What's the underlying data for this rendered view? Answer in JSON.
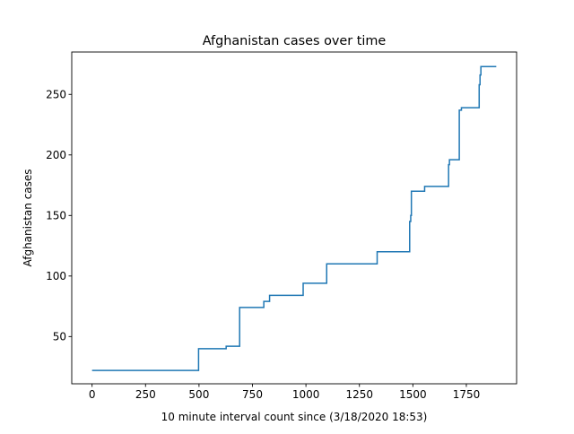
{
  "chart_data": {
    "type": "line",
    "title": "Afghanistan cases over time",
    "xlabel": "10 minute interval count since (3/18/2020 18:53)",
    "ylabel": "Afghanistan cases",
    "xlim": [
      -95,
      1985
    ],
    "ylim": [
      11,
      285
    ],
    "x_ticks": [
      0,
      250,
      500,
      750,
      1000,
      1250,
      1500,
      1750
    ],
    "y_ticks": [
      50,
      100,
      150,
      200,
      250
    ],
    "grid": false,
    "legend": "none",
    "series": [
      {
        "color": "#1f77b4",
        "step": "post",
        "x": [
          0,
          498,
          627,
          690,
          803,
          830,
          987,
          1097,
          1333,
          1485,
          1490,
          1493,
          1555,
          1667,
          1671,
          1717,
          1727,
          1810,
          1814,
          1818,
          1890
        ],
        "y": [
          22,
          40,
          42,
          74,
          79,
          84,
          94,
          110,
          120,
          145,
          150,
          170,
          174,
          192,
          196,
          237,
          239,
          258,
          266,
          273,
          273
        ]
      }
    ]
  }
}
